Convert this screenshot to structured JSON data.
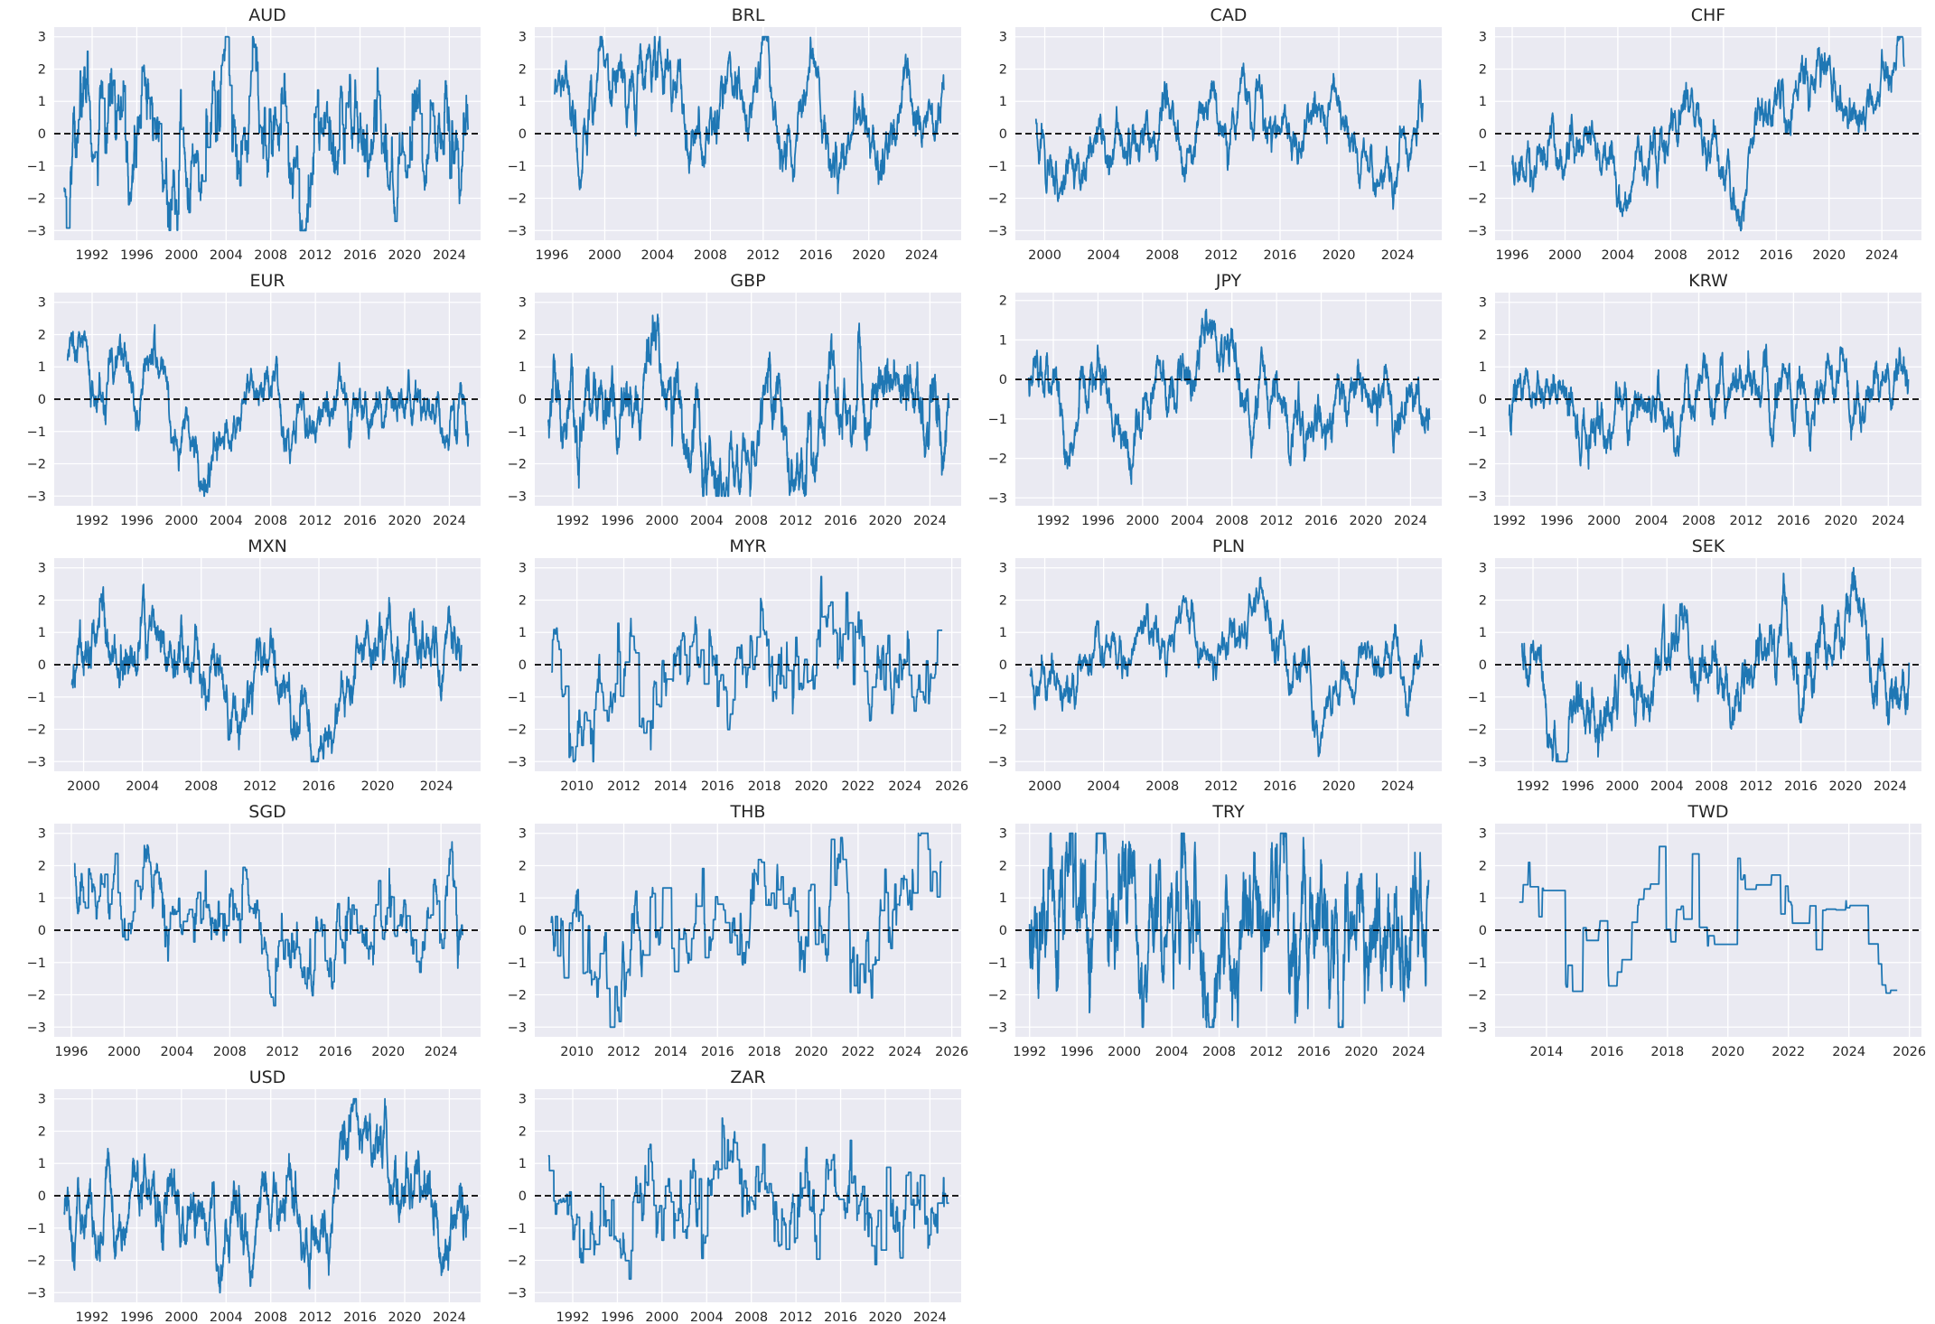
{
  "chart_data": {
    "type": "line",
    "layout": "small-multiples grid, 5 rows x 4 columns, 18 panels",
    "style": {
      "background": "#eaeaf2",
      "grid": true,
      "grid_color": "#ffffff",
      "line_color": "#1f77b4",
      "zero_line_color": "#000000",
      "zero_line_style": "dashed"
    },
    "panels": [
      {
        "title": "AUD",
        "xlim": [
          1988.6,
          2026.8
        ],
        "xticks": [
          1992,
          1996,
          2000,
          2004,
          2008,
          2012,
          2016,
          2020,
          2024
        ],
        "ylim": [
          -3.3,
          3.3
        ],
        "yticks": [
          -3,
          -2,
          -1,
          0,
          1,
          2,
          3
        ],
        "start": 1989.5,
        "end": 2025.7,
        "seed": 11,
        "step": 0.45,
        "tau": 0.4,
        "amp": 1.6
      },
      {
        "title": "BRL",
        "xlim": [
          1994.7,
          2027.0
        ],
        "xticks": [
          1996,
          2000,
          2004,
          2008,
          2012,
          2016,
          2020,
          2024
        ],
        "ylim": [
          -3.3,
          3.3
        ],
        "yticks": [
          -3,
          -2,
          -1,
          0,
          1,
          2,
          3
        ],
        "start": 1996.2,
        "end": 2025.7,
        "seed": 23,
        "step": 0,
        "tau": 0.9,
        "amp": 1.5
      },
      {
        "title": "CAD",
        "xlim": [
          1998.0,
          2027.0
        ],
        "xticks": [
          2000,
          2004,
          2008,
          2012,
          2016,
          2020,
          2024
        ],
        "ylim": [
          -3.3,
          3.3
        ],
        "yticks": [
          -3,
          -2,
          -1,
          0,
          1,
          2,
          3
        ],
        "start": 1999.4,
        "end": 2025.7,
        "seed": 37,
        "step": 0,
        "tau": 0.9,
        "amp": 1.4
      },
      {
        "title": "CHF",
        "xlim": [
          1994.7,
          2027.0
        ],
        "xticks": [
          1996,
          2000,
          2004,
          2008,
          2012,
          2016,
          2020,
          2024
        ],
        "ylim": [
          -3.3,
          3.3
        ],
        "yticks": [
          -3,
          -2,
          -1,
          0,
          1,
          2,
          3
        ],
        "start": 1996.0,
        "end": 2025.7,
        "seed": 41,
        "step": 0,
        "tau": 0.9,
        "amp": 1.3
      },
      {
        "title": "EUR",
        "xlim": [
          1988.6,
          2026.8
        ],
        "xticks": [
          1992,
          1996,
          2000,
          2004,
          2008,
          2012,
          2016,
          2020,
          2024
        ],
        "ylim": [
          -3.3,
          3.3
        ],
        "yticks": [
          -3,
          -2,
          -1,
          0,
          1,
          2,
          3
        ],
        "start": 1989.8,
        "end": 2025.7,
        "seed": 53,
        "step": 0,
        "tau": 1.1,
        "amp": 1.2
      },
      {
        "title": "GBP",
        "xlim": [
          1988.6,
          2026.8
        ],
        "xticks": [
          1992,
          1996,
          2000,
          2004,
          2008,
          2012,
          2016,
          2020,
          2024
        ],
        "ylim": [
          -3.3,
          3.3
        ],
        "yticks": [
          -3,
          -2,
          -1,
          0,
          1,
          2,
          3
        ],
        "start": 1989.8,
        "end": 2025.7,
        "seed": 67,
        "step": 0,
        "tau": 0.6,
        "amp": 1.5
      },
      {
        "title": "JPY",
        "xlim": [
          1988.6,
          2026.8
        ],
        "xticks": [
          1992,
          1996,
          2000,
          2004,
          2008,
          2012,
          2016,
          2020,
          2024
        ],
        "ylim": [
          -3.2,
          2.2
        ],
        "yticks": [
          -3,
          -2,
          -1,
          0,
          1,
          2
        ],
        "start": 1989.8,
        "end": 2025.7,
        "seed": 71,
        "step": 0,
        "tau": 1.1,
        "amp": 1.2
      },
      {
        "title": "KRW",
        "xlim": [
          1990.8,
          2026.8
        ],
        "xticks": [
          1992,
          1996,
          2000,
          2004,
          2008,
          2012,
          2016,
          2020,
          2024
        ],
        "ylim": [
          -3.3,
          3.3
        ],
        "yticks": [
          -3,
          -2,
          -1,
          0,
          1,
          2,
          3
        ],
        "start": 1992.0,
        "end": 2025.7,
        "seed": 83,
        "step": 0,
        "tau": 0.5,
        "amp": 1.0
      },
      {
        "title": "MXN",
        "xlim": [
          1998.0,
          2027.0
        ],
        "xticks": [
          2000,
          2004,
          2008,
          2012,
          2016,
          2020,
          2024
        ],
        "ylim": [
          -3.3,
          3.3
        ],
        "yticks": [
          -3,
          -2,
          -1,
          0,
          1,
          2,
          3
        ],
        "start": 1999.2,
        "end": 2025.7,
        "seed": 97,
        "step": 0,
        "tau": 0.6,
        "amp": 1.4
      },
      {
        "title": "MYR",
        "xlim": [
          2008.2,
          2026.4
        ],
        "xticks": [
          2010,
          2012,
          2014,
          2016,
          2018,
          2020,
          2022,
          2024,
          2026
        ],
        "ylim": [
          -3.3,
          3.3
        ],
        "yticks": [
          -3,
          -2,
          -1,
          0,
          1,
          2,
          3
        ],
        "start": 2008.9,
        "end": 2025.6,
        "seed": 101,
        "step": 0.35,
        "tau": 0.2,
        "amp": 1.4
      },
      {
        "title": "PLN",
        "xlim": [
          1998.0,
          2027.0
        ],
        "xticks": [
          2000,
          2004,
          2008,
          2012,
          2016,
          2020,
          2024
        ],
        "ylim": [
          -3.3,
          3.3
        ],
        "yticks": [
          -3,
          -2,
          -1,
          0,
          1,
          2,
          3
        ],
        "start": 1999.0,
        "end": 2025.7,
        "seed": 113,
        "step": 0,
        "tau": 1.0,
        "amp": 1.3
      },
      {
        "title": "SEK",
        "xlim": [
          1988.6,
          2026.8
        ],
        "xticks": [
          1992,
          1996,
          2000,
          2004,
          2008,
          2012,
          2016,
          2020,
          2024
        ],
        "ylim": [
          -3.3,
          3.3
        ],
        "yticks": [
          -3,
          -2,
          -1,
          0,
          1,
          2,
          3
        ],
        "start": 1991.0,
        "end": 2025.7,
        "seed": 127,
        "step": 0,
        "tau": 0.8,
        "amp": 1.4
      },
      {
        "title": "SGD",
        "xlim": [
          1994.7,
          2027.0
        ],
        "xticks": [
          1996,
          2000,
          2004,
          2008,
          2012,
          2016,
          2020,
          2024
        ],
        "ylim": [
          -3.3,
          3.3
        ],
        "yticks": [
          -3,
          -2,
          -1,
          0,
          1,
          2,
          3
        ],
        "start": 1996.2,
        "end": 2025.7,
        "seed": 131,
        "step": 0.3,
        "tau": 0.6,
        "amp": 1.4
      },
      {
        "title": "THB",
        "xlim": [
          2008.2,
          2026.4
        ],
        "xticks": [
          2010,
          2012,
          2014,
          2016,
          2018,
          2020,
          2022,
          2024,
          2026
        ],
        "ylim": [
          -3.3,
          3.3
        ],
        "yticks": [
          -3,
          -2,
          -1,
          0,
          1,
          2,
          3
        ],
        "start": 2008.9,
        "end": 2025.6,
        "seed": 139,
        "step": 0.3,
        "tau": 0.3,
        "amp": 1.6
      },
      {
        "title": "TRY",
        "xlim": [
          1990.8,
          2026.8
        ],
        "xticks": [
          1992,
          1996,
          2000,
          2004,
          2008,
          2012,
          2016,
          2020,
          2024
        ],
        "ylim": [
          -3.3,
          3.3
        ],
        "yticks": [
          -3,
          -2,
          -1,
          0,
          1,
          2,
          3
        ],
        "start": 1992.0,
        "end": 2025.7,
        "seed": 149,
        "step": 0,
        "tau": 0.25,
        "amp": 2.0
      },
      {
        "title": "TWD",
        "xlim": [
          2012.3,
          2026.4
        ],
        "xticks": [
          2014,
          2016,
          2018,
          2020,
          2022,
          2024,
          2026
        ],
        "ylim": [
          -3.3,
          3.3
        ],
        "yticks": [
          -3,
          -2,
          -1,
          0,
          1,
          2,
          3
        ],
        "start": 2013.1,
        "end": 2025.6,
        "seed": 157,
        "step": 0.1,
        "tau": 0.5,
        "amp": 1.5
      },
      {
        "title": "USD",
        "xlim": [
          1988.6,
          2026.8
        ],
        "xticks": [
          1992,
          1996,
          2000,
          2004,
          2008,
          2012,
          2016,
          2020,
          2024
        ],
        "ylim": [
          -3.3,
          3.3
        ],
        "yticks": [
          -3,
          -2,
          -1,
          0,
          1,
          2,
          3
        ],
        "start": 1989.5,
        "end": 2025.7,
        "seed": 163,
        "step": 0,
        "tau": 0.7,
        "amp": 1.4
      },
      {
        "title": "ZAR",
        "xlim": [
          1988.6,
          2026.8
        ],
        "xticks": [
          1992,
          1996,
          2000,
          2004,
          2008,
          2012,
          2016,
          2020,
          2024
        ],
        "ylim": [
          -3.3,
          3.3
        ],
        "yticks": [
          -3,
          -2,
          -1,
          0,
          1,
          2,
          3
        ],
        "start": 1989.8,
        "end": 2025.7,
        "seed": 173,
        "step": 0.2,
        "tau": 0.5,
        "amp": 1.5
      }
    ]
  }
}
